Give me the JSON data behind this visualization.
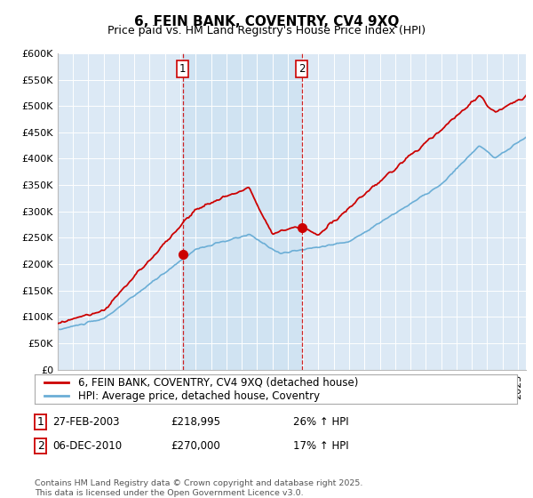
{
  "title": "6, FEIN BANK, COVENTRY, CV4 9XQ",
  "subtitle": "Price paid vs. HM Land Registry's House Price Index (HPI)",
  "ylabel_ticks": [
    "£0",
    "£50K",
    "£100K",
    "£150K",
    "£200K",
    "£250K",
    "£300K",
    "£350K",
    "£400K",
    "£450K",
    "£500K",
    "£550K",
    "£600K"
  ],
  "ytick_vals": [
    0,
    50000,
    100000,
    150000,
    200000,
    250000,
    300000,
    350000,
    400000,
    450000,
    500000,
    550000,
    600000
  ],
  "ylim": [
    0,
    600000
  ],
  "xlim_start": 1995.0,
  "xlim_end": 2025.5,
  "hpi_color": "#6baed6",
  "price_color": "#cc0000",
  "dashed_line_color": "#cc0000",
  "background_color": "#dce9f5",
  "shade_color": "#cce0f0",
  "marker1_year": 2003.15,
  "marker2_year": 2010.92,
  "marker1_price": 218995,
  "marker2_price": 270000,
  "legend_house": "6, FEIN BANK, COVENTRY, CV4 9XQ (detached house)",
  "legend_hpi": "HPI: Average price, detached house, Coventry",
  "table_row1": [
    "1",
    "27-FEB-2003",
    "£218,995",
    "26% ↑ HPI"
  ],
  "table_row2": [
    "2",
    "06-DEC-2010",
    "£270,000",
    "17% ↑ HPI"
  ],
  "footnote": "Contains HM Land Registry data © Crown copyright and database right 2025.\nThis data is licensed under the Open Government Licence v3.0.",
  "title_fontsize": 11,
  "subtitle_fontsize": 9,
  "tick_fontsize": 8,
  "legend_fontsize": 8.5
}
